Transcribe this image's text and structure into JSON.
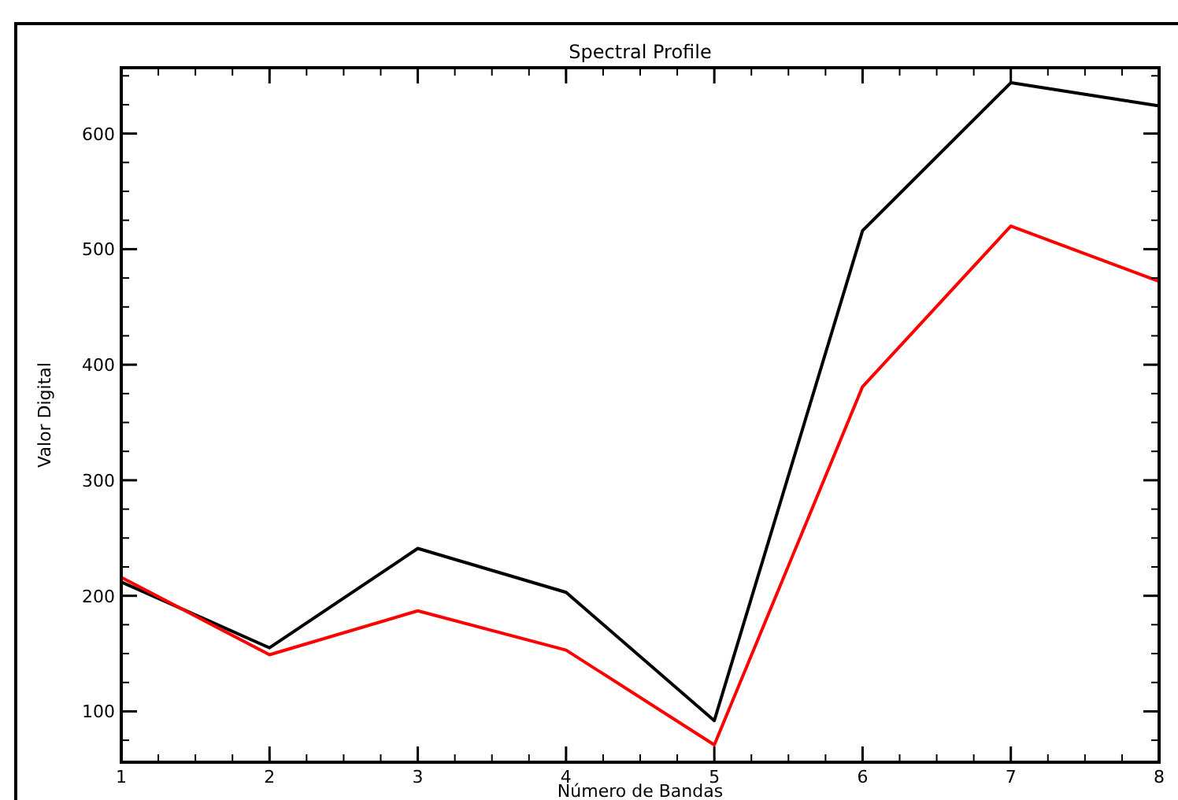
{
  "chart_data": {
    "type": "line",
    "title": "Spectral Profile",
    "xlabel": "Número de Bandas",
    "ylabel": "Valor Digital",
    "x": [
      1,
      2,
      3,
      4,
      5,
      6,
      7,
      8
    ],
    "series": [
      {
        "color": "#000000",
        "values": [
          212,
          155,
          241,
          203,
          92,
          516,
          644,
          624
        ]
      },
      {
        "color": "#ff0000",
        "values": [
          216,
          149,
          187,
          153,
          71,
          381,
          520,
          472
        ]
      }
    ],
    "xlim": [
      1,
      8
    ],
    "xticks": [
      1,
      2,
      3,
      4,
      5,
      6,
      7,
      8
    ],
    "ylim": [
      56,
      657
    ],
    "yticks": [
      100,
      200,
      300,
      400,
      500,
      600
    ],
    "grid": false,
    "marker": "none",
    "line_style": "solid"
  }
}
